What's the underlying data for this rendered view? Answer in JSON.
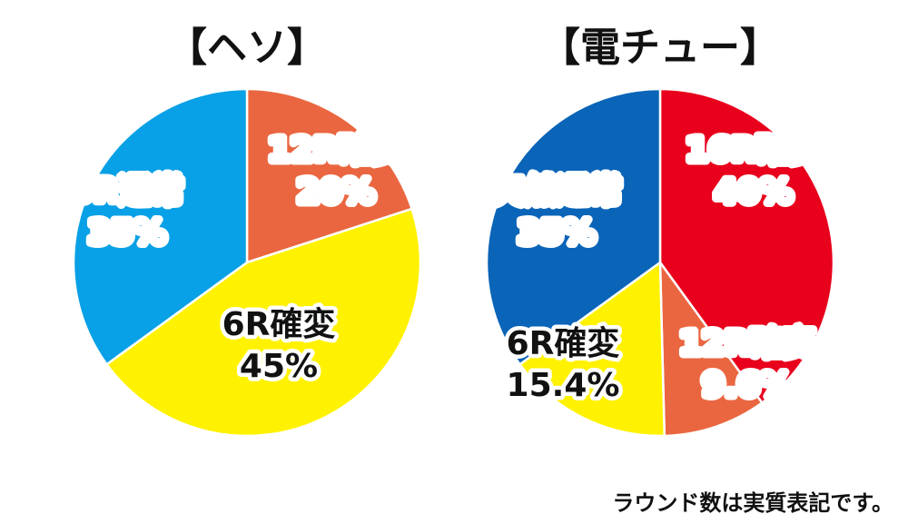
{
  "chart_data": [
    {
      "type": "pie",
      "title": "【ヘソ】",
      "slices": [
        {
          "label": "12R確変",
          "value": 20,
          "display": "20%",
          "color": "#EA6640",
          "text_color": "#ffffff"
        },
        {
          "label": "6R確変",
          "value": 45,
          "display": "45%",
          "color": "#FFF200",
          "text_color": "#111111"
        },
        {
          "label": "6R通常",
          "value": 35,
          "display": "35%",
          "color": "#08A0E6",
          "text_color": "#ffffff"
        }
      ]
    },
    {
      "type": "pie",
      "title": "【電チュー】",
      "slices": [
        {
          "label": "16R確変",
          "value": 40,
          "display": "40%",
          "color": "#E8001C",
          "text_color": "#ffffff"
        },
        {
          "label": "12R確変",
          "value": 9.6,
          "display": "9.6%",
          "color": "#EA6640",
          "text_color": "#ffffff"
        },
        {
          "label": "6R確変",
          "value": 15.4,
          "display": "15.4%",
          "color": "#FFF200",
          "text_color": "#111111"
        },
        {
          "label": "突然通常",
          "value": 35,
          "display": "35%",
          "color": "#0A64B8",
          "text_color": "#ffffff"
        }
      ]
    }
  ],
  "footnote": "ラウンド数は実質表記です。"
}
